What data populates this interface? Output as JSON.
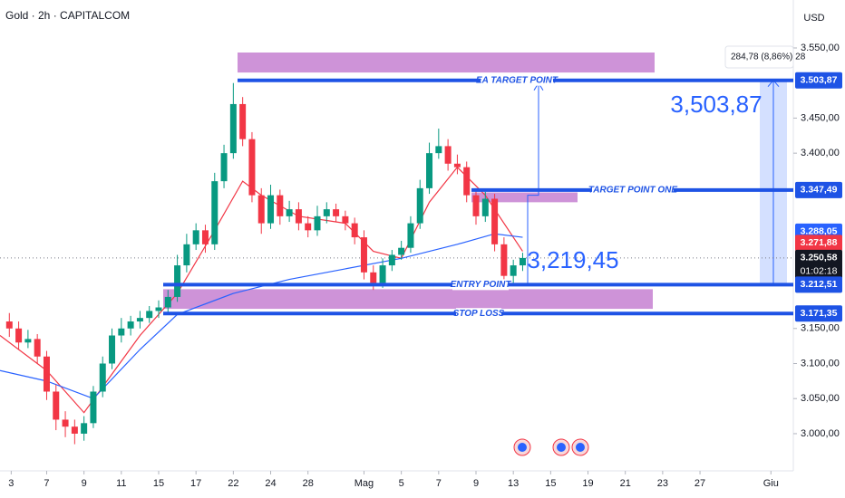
{
  "header": {
    "symbol": "Gold · 2h · CAPITALCOM",
    "currency": "USD"
  },
  "chart_data": {
    "type": "candlestick",
    "up_color": "#089981",
    "down_color": "#f23645",
    "open": [
      3160,
      3150,
      3130,
      3135,
      3110,
      3060,
      3020,
      3010,
      3000,
      3015,
      3060,
      3100,
      3140,
      3150,
      3160,
      3165,
      3175,
      3180,
      3195,
      3240,
      3270,
      3290,
      3270,
      3360,
      3400,
      3470,
      3420,
      3340,
      3300,
      3340,
      3310,
      3320,
      3300,
      3290,
      3310,
      3320,
      3310,
      3300,
      3280,
      3230,
      3215,
      3240,
      3255,
      3265,
      3300,
      3350,
      3400,
      3410,
      3385,
      3380,
      3340,
      3310,
      3335,
      3270,
      3225,
      3240
    ],
    "high": [
      3172,
      3160,
      3148,
      3142,
      3118,
      3070,
      3032,
      3020,
      3025,
      3068,
      3110,
      3150,
      3165,
      3168,
      3175,
      3182,
      3190,
      3205,
      3255,
      3285,
      3300,
      3298,
      3372,
      3412,
      3500,
      3480,
      3430,
      3350,
      3355,
      3348,
      3332,
      3330,
      3310,
      3325,
      3330,
      3328,
      3318,
      3308,
      3290,
      3240,
      3250,
      3262,
      3275,
      3310,
      3362,
      3415,
      3435,
      3420,
      3398,
      3388,
      3350,
      3345,
      3342,
      3280,
      3248,
      3258
    ],
    "low": [
      3138,
      3120,
      3122,
      3100,
      3048,
      3005,
      2995,
      2985,
      2990,
      3008,
      3052,
      3092,
      3130,
      3140,
      3150,
      3158,
      3165,
      3172,
      3188,
      3230,
      3262,
      3258,
      3262,
      3350,
      3392,
      3410,
      3330,
      3285,
      3292,
      3298,
      3302,
      3290,
      3280,
      3282,
      3300,
      3302,
      3290,
      3270,
      3220,
      3205,
      3208,
      3232,
      3248,
      3258,
      3292,
      3342,
      3392,
      3375,
      3370,
      3330,
      3298,
      3302,
      3260,
      3212,
      3215,
      3232
    ],
    "close": [
      3150,
      3130,
      3135,
      3110,
      3060,
      3020,
      3010,
      3000,
      3015,
      3060,
      3100,
      3140,
      3150,
      3160,
      3165,
      3175,
      3180,
      3195,
      3240,
      3270,
      3290,
      3270,
      3360,
      3400,
      3470,
      3420,
      3340,
      3300,
      3340,
      3310,
      3320,
      3300,
      3290,
      3310,
      3320,
      3310,
      3300,
      3280,
      3230,
      3215,
      3240,
      3255,
      3265,
      3300,
      3350,
      3400,
      3410,
      3385,
      3380,
      3340,
      3310,
      3335,
      3270,
      3225,
      3240,
      3250.58
    ],
    "moving_averages": [
      {
        "color": "#f23645",
        "x": [
          -1,
          4,
          8,
          14,
          18,
          22,
          25,
          27,
          31,
          36,
          39,
          42,
          45,
          48,
          51,
          55
        ],
        "values": [
          3140,
          3090,
          3030,
          3140,
          3200,
          3290,
          3360,
          3340,
          3310,
          3300,
          3260,
          3250,
          3330,
          3380,
          3340,
          3260
        ]
      },
      {
        "color": "#2962ff",
        "x": [
          -1,
          4,
          9,
          14,
          18,
          24,
          30,
          36,
          42,
          48,
          52,
          55
        ],
        "values": [
          3090,
          3075,
          3050,
          3120,
          3170,
          3200,
          3220,
          3235,
          3250,
          3270,
          3285,
          3280
        ]
      }
    ],
    "xlim": [
      -1,
      84
    ],
    "xticks": [
      {
        "value": 0.2,
        "label": "3"
      },
      {
        "value": 4,
        "label": "7"
      },
      {
        "value": 8,
        "label": "9"
      },
      {
        "value": 12,
        "label": "11"
      },
      {
        "value": 16,
        "label": "15"
      },
      {
        "value": 20,
        "label": "17"
      },
      {
        "value": 24,
        "label": "22"
      },
      {
        "value": 28,
        "label": "24"
      },
      {
        "value": 32,
        "label": "28"
      },
      {
        "value": 38,
        "label": "Mag"
      },
      {
        "value": 42,
        "label": "5"
      },
      {
        "value": 46,
        "label": "7"
      },
      {
        "value": 50,
        "label": "9"
      },
      {
        "value": 54,
        "label": "13"
      },
      {
        "value": 58,
        "label": "15"
      },
      {
        "value": 62,
        "label": "19"
      },
      {
        "value": 66,
        "label": "21"
      },
      {
        "value": 70,
        "label": "23"
      },
      {
        "value": 74,
        "label": "27"
      },
      {
        "value": 81.6,
        "label": "Giu"
      }
    ],
    "ylim": [
      2947,
      3618.4
    ],
    "yticks": [
      {
        "value": 3550,
        "label": "3.550,00"
      },
      {
        "value": 3450,
        "label": "3.450,00"
      },
      {
        "value": 3400,
        "label": "3.400,00"
      },
      {
        "value": 3150,
        "label": "3.150,00"
      },
      {
        "value": 3100,
        "label": "3.100,00"
      },
      {
        "value": 3050,
        "label": "3.050,00"
      },
      {
        "value": 3000,
        "label": "3.000,00"
      }
    ],
    "levels": [
      {
        "label": "EA TARGET POINT",
        "value": 3503.87
      },
      {
        "label": "TARGET POINT ONE",
        "value": 3347.49
      },
      {
        "label": "ENTRY POINT",
        "value": 3212.51
      },
      {
        "label": "STOP LOSS",
        "value": 3171.35
      }
    ],
    "level_color": "#1e53e5",
    "zones": [
      {
        "low": 3515,
        "high": 3543.5
      },
      {
        "low": 3330,
        "high": 3344
      },
      {
        "low": 3178,
        "high": 3206
      }
    ],
    "zone_color": "#ce93d8",
    "annotations": [
      "3,503,87",
      "3,219,45"
    ],
    "measure": "284,78 (8,86%) 28",
    "price_badges": [
      {
        "value": 3503.87,
        "label": "3.503,87",
        "color": "#1e53e5"
      },
      {
        "value": 3347.49,
        "label": "3.347,49",
        "color": "#1e53e5"
      },
      {
        "value": 3288.05,
        "label": "3.288,05",
        "color": "#2962ff"
      },
      {
        "value": 3271.88,
        "label": "3.271,88",
        "color": "#f23645"
      },
      {
        "value": 3250.58,
        "label": "3.250,58",
        "color": "#131722"
      },
      {
        "value": 3212.51,
        "label": "3.212,51",
        "color": "#1e53e5"
      },
      {
        "value": 3171.35,
        "label": "3.171,35",
        "color": "#1e53e5"
      }
    ],
    "countdown": "01:02:18"
  }
}
